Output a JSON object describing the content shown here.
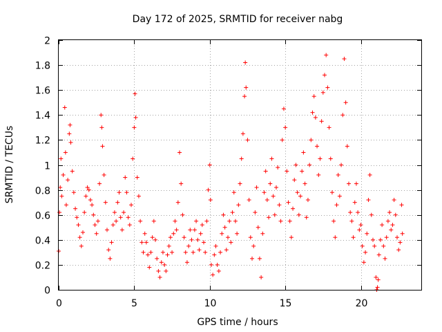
{
  "chart_data": {
    "type": "scatter",
    "title": "Day 172 of 2025, SRMTID for receiver nabg",
    "xlabel": "GPS time / hours",
    "ylabel": "SRMTID / TECUs",
    "xlim": [
      0,
      24
    ],
    "ylim": [
      0,
      2
    ],
    "xticks": [
      0,
      5,
      10,
      15,
      20
    ],
    "xtick_labels": [
      "0",
      "5",
      "10",
      "15",
      "20"
    ],
    "yticks": [
      0,
      0.2,
      0.4,
      0.6,
      0.8,
      1,
      1.2,
      1.4,
      1.6,
      1.8,
      2
    ],
    "ytick_labels": [
      "0",
      "0.2",
      "0.4",
      "0.6",
      "0.8",
      "1",
      "1.2",
      "1.4",
      "1.6",
      "1.8",
      "2"
    ],
    "grid": true,
    "marker": "+",
    "color": "#ff0000",
    "series": [
      {
        "name": "SRMTID",
        "points": [
          [
            0.0,
            0.31
          ],
          [
            0.05,
            0.62
          ],
          [
            0.1,
            0.82
          ],
          [
            0.15,
            1.05
          ],
          [
            0.2,
            0.75
          ],
          [
            0.3,
            0.92
          ],
          [
            0.4,
            1.46
          ],
          [
            0.45,
            1.1
          ],
          [
            0.5,
            0.68
          ],
          [
            0.6,
            0.88
          ],
          [
            0.7,
            1.25
          ],
          [
            0.75,
            1.32
          ],
          [
            0.8,
            1.18
          ],
          [
            0.9,
            0.95
          ],
          [
            1.0,
            0.78
          ],
          [
            1.1,
            0.65
          ],
          [
            1.2,
            0.58
          ],
          [
            1.3,
            0.52
          ],
          [
            1.4,
            0.42
          ],
          [
            1.5,
            0.35
          ],
          [
            1.6,
            0.46
          ],
          [
            1.7,
            0.62
          ],
          [
            1.8,
            0.75
          ],
          [
            1.9,
            0.82
          ],
          [
            2.0,
            0.8
          ],
          [
            2.1,
            0.72
          ],
          [
            2.2,
            0.68
          ],
          [
            2.3,
            0.6
          ],
          [
            2.4,
            0.52
          ],
          [
            2.5,
            0.45
          ],
          [
            2.6,
            0.55
          ],
          [
            2.7,
            0.85
          ],
          [
            2.8,
            1.4
          ],
          [
            2.85,
            1.3
          ],
          [
            2.9,
            1.15
          ],
          [
            3.0,
            0.92
          ],
          [
            3.1,
            0.7
          ],
          [
            3.2,
            0.48
          ],
          [
            3.3,
            0.32
          ],
          [
            3.4,
            0.25
          ],
          [
            3.5,
            0.38
          ],
          [
            3.6,
            0.52
          ],
          [
            3.7,
            0.62
          ],
          [
            3.8,
            0.55
          ],
          [
            3.9,
            0.7
          ],
          [
            4.0,
            0.78
          ],
          [
            4.1,
            0.58
          ],
          [
            4.2,
            0.48
          ],
          [
            4.3,
            0.62
          ],
          [
            4.4,
            0.9
          ],
          [
            4.5,
            0.78
          ],
          [
            4.6,
            0.58
          ],
          [
            4.7,
            0.52
          ],
          [
            4.8,
            0.68
          ],
          [
            4.9,
            1.05
          ],
          [
            5.0,
            1.3
          ],
          [
            5.05,
            1.57
          ],
          [
            5.1,
            1.38
          ],
          [
            5.2,
            0.9
          ],
          [
            5.3,
            0.75
          ],
          [
            5.4,
            0.55
          ],
          [
            5.5,
            0.38
          ],
          [
            5.6,
            0.3
          ],
          [
            5.7,
            0.45
          ],
          [
            5.8,
            0.38
          ],
          [
            5.9,
            0.28
          ],
          [
            6.0,
            0.18
          ],
          [
            6.1,
            0.3
          ],
          [
            6.2,
            0.42
          ],
          [
            6.3,
            0.55
          ],
          [
            6.4,
            0.4
          ],
          [
            6.5,
            0.25
          ],
          [
            6.6,
            0.15
          ],
          [
            6.7,
            0.1
          ],
          [
            6.8,
            0.22
          ],
          [
            6.9,
            0.3
          ],
          [
            7.0,
            0.2
          ],
          [
            7.1,
            0.15
          ],
          [
            7.2,
            0.28
          ],
          [
            7.3,
            0.35
          ],
          [
            7.4,
            0.42
          ],
          [
            7.5,
            0.3
          ],
          [
            7.6,
            0.45
          ],
          [
            7.7,
            0.55
          ],
          [
            7.8,
            0.48
          ],
          [
            7.9,
            0.7
          ],
          [
            8.0,
            1.1
          ],
          [
            8.1,
            0.85
          ],
          [
            8.2,
            0.6
          ],
          [
            8.3,
            0.42
          ],
          [
            8.4,
            0.3
          ],
          [
            8.5,
            0.22
          ],
          [
            8.6,
            0.35
          ],
          [
            8.7,
            0.48
          ],
          [
            8.8,
            0.4
          ],
          [
            8.9,
            0.3
          ],
          [
            9.0,
            0.48
          ],
          [
            9.1,
            0.55
          ],
          [
            9.2,
            0.4
          ],
          [
            9.3,
            0.32
          ],
          [
            9.4,
            0.45
          ],
          [
            9.5,
            0.52
          ],
          [
            9.6,
            0.38
          ],
          [
            9.7,
            0.3
          ],
          [
            9.8,
            0.55
          ],
          [
            9.9,
            0.8
          ],
          [
            10.0,
            1.0
          ],
          [
            10.05,
            0.72
          ],
          [
            10.1,
            0.2
          ],
          [
            10.2,
            0.12
          ],
          [
            10.3,
            0.28
          ],
          [
            10.4,
            0.35
          ],
          [
            10.5,
            0.2
          ],
          [
            10.6,
            0.15
          ],
          [
            10.7,
            0.3
          ],
          [
            10.8,
            0.45
          ],
          [
            10.9,
            0.6
          ],
          [
            11.0,
            0.5
          ],
          [
            11.1,
            0.32
          ],
          [
            11.2,
            0.42
          ],
          [
            11.3,
            0.55
          ],
          [
            11.4,
            0.38
          ],
          [
            11.5,
            0.62
          ],
          [
            11.6,
            0.78
          ],
          [
            11.7,
            0.55
          ],
          [
            11.8,
            0.45
          ],
          [
            11.9,
            0.68
          ],
          [
            12.0,
            0.85
          ],
          [
            12.1,
            1.05
          ],
          [
            12.2,
            1.25
          ],
          [
            12.3,
            1.55
          ],
          [
            12.35,
            1.82
          ],
          [
            12.4,
            1.62
          ],
          [
            12.5,
            1.2
          ],
          [
            12.6,
            0.72
          ],
          [
            12.7,
            0.42
          ],
          [
            12.8,
            0.25
          ],
          [
            12.9,
            0.35
          ],
          [
            13.0,
            0.62
          ],
          [
            13.1,
            0.82
          ],
          [
            13.2,
            0.5
          ],
          [
            13.3,
            0.25
          ],
          [
            13.4,
            0.1
          ],
          [
            13.5,
            0.45
          ],
          [
            13.6,
            0.78
          ],
          [
            13.7,
            0.95
          ],
          [
            13.8,
            0.72
          ],
          [
            13.9,
            0.58
          ],
          [
            14.0,
            0.85
          ],
          [
            14.1,
            1.05
          ],
          [
            14.2,
            0.75
          ],
          [
            14.3,
            0.6
          ],
          [
            14.4,
            0.82
          ],
          [
            14.5,
            0.98
          ],
          [
            14.6,
            0.68
          ],
          [
            14.7,
            0.55
          ],
          [
            14.8,
            1.2
          ],
          [
            14.9,
            1.45
          ],
          [
            15.0,
            1.3
          ],
          [
            15.1,
            0.95
          ],
          [
            15.2,
            0.7
          ],
          [
            15.3,
            0.55
          ],
          [
            15.4,
            0.42
          ],
          [
            15.5,
            0.65
          ],
          [
            15.6,
            0.88
          ],
          [
            15.7,
            1.0
          ],
          [
            15.8,
            0.78
          ],
          [
            15.9,
            0.6
          ],
          [
            16.0,
            0.75
          ],
          [
            16.1,
            0.95
          ],
          [
            16.2,
            1.1
          ],
          [
            16.3,
            0.85
          ],
          [
            16.4,
            0.58
          ],
          [
            16.5,
            0.72
          ],
          [
            16.6,
            1.0
          ],
          [
            16.7,
            1.2
          ],
          [
            16.8,
            1.42
          ],
          [
            16.9,
            1.55
          ],
          [
            17.0,
            1.38
          ],
          [
            17.1,
            1.15
          ],
          [
            17.2,
            0.92
          ],
          [
            17.3,
            1.05
          ],
          [
            17.4,
            1.35
          ],
          [
            17.5,
            1.58
          ],
          [
            17.6,
            1.72
          ],
          [
            17.7,
            1.88
          ],
          [
            17.8,
            1.62
          ],
          [
            17.9,
            1.3
          ],
          [
            18.0,
            1.05
          ],
          [
            18.1,
            0.78
          ],
          [
            18.2,
            0.55
          ],
          [
            18.3,
            0.42
          ],
          [
            18.4,
            0.68
          ],
          [
            18.5,
            0.92
          ],
          [
            18.6,
            0.75
          ],
          [
            18.7,
            1.0
          ],
          [
            18.8,
            1.4
          ],
          [
            18.9,
            1.85
          ],
          [
            19.0,
            1.5
          ],
          [
            19.1,
            1.15
          ],
          [
            19.2,
            0.85
          ],
          [
            19.3,
            0.62
          ],
          [
            19.4,
            0.55
          ],
          [
            19.5,
            0.42
          ],
          [
            19.6,
            0.7
          ],
          [
            19.7,
            0.85
          ],
          [
            19.8,
            0.62
          ],
          [
            19.9,
            0.48
          ],
          [
            20.0,
            0.52
          ],
          [
            20.1,
            0.35
          ],
          [
            20.2,
            0.22
          ],
          [
            20.3,
            0.3
          ],
          [
            20.4,
            0.45
          ],
          [
            20.5,
            0.72
          ],
          [
            20.6,
            0.92
          ],
          [
            20.7,
            0.6
          ],
          [
            20.8,
            0.4
          ],
          [
            20.9,
            0.35
          ],
          [
            21.0,
            0.1
          ],
          [
            21.05,
            0.0
          ],
          [
            21.1,
            0.02
          ],
          [
            21.15,
            0.08
          ],
          [
            21.2,
            0.28
          ],
          [
            21.3,
            0.4
          ],
          [
            21.4,
            0.52
          ],
          [
            21.5,
            0.35
          ],
          [
            21.6,
            0.25
          ],
          [
            21.7,
            0.42
          ],
          [
            21.8,
            0.55
          ],
          [
            21.9,
            0.62
          ],
          [
            22.0,
            0.48
          ],
          [
            22.1,
            0.52
          ],
          [
            22.2,
            0.72
          ],
          [
            22.3,
            0.6
          ],
          [
            22.4,
            0.42
          ],
          [
            22.5,
            0.32
          ],
          [
            22.6,
            0.38
          ],
          [
            22.7,
            0.68
          ],
          [
            22.75,
            0.45
          ]
        ]
      }
    ]
  }
}
